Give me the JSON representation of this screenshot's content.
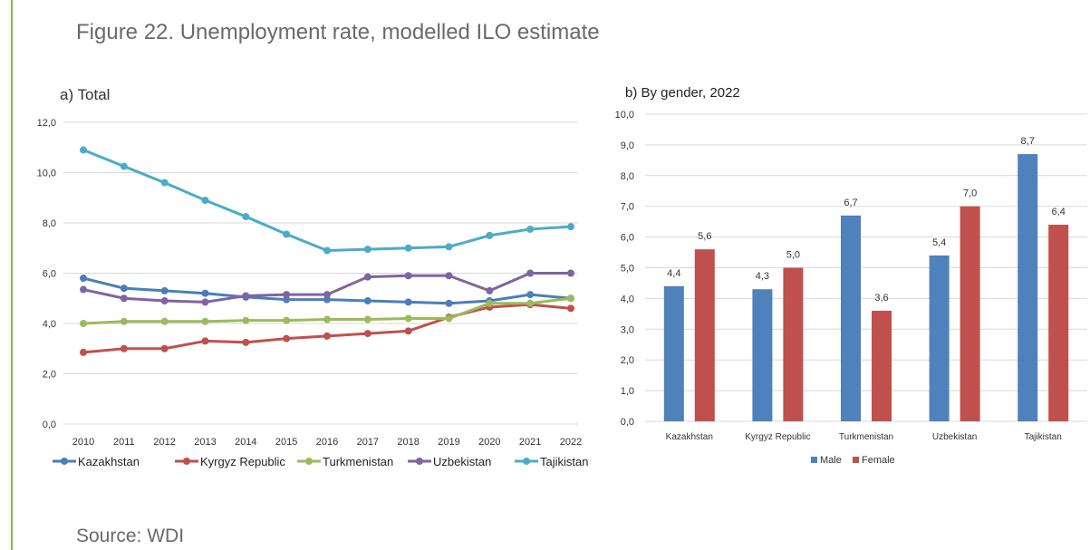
{
  "figure_title": "Figure 22. Unemployment rate, modelled ILO estimate",
  "source": "Source: WDI",
  "chart_data": [
    {
      "type": "line",
      "title": "a) Total",
      "x": [
        "2010",
        "2011",
        "2012",
        "2013",
        "2014",
        "2015",
        "2016",
        "2017",
        "2018",
        "2019",
        "2020",
        "2021",
        "2022"
      ],
      "ylim": [
        0,
        12
      ],
      "yticks": [
        "0,0",
        "2,0",
        "4,0",
        "6,0",
        "8,0",
        "10,0",
        "12,0"
      ],
      "grid": true,
      "legend_position": "bottom",
      "series": [
        {
          "name": "Kazakhstan",
          "color": "#4a7ebb",
          "values": [
            5.8,
            5.4,
            5.3,
            5.2,
            5.05,
            4.95,
            4.95,
            4.9,
            4.85,
            4.8,
            4.9,
            5.15,
            5.0
          ]
        },
        {
          "name": "Kyrgyz Republic",
          "color": "#c0504d",
          "values": [
            2.85,
            3.0,
            3.0,
            3.3,
            3.25,
            3.4,
            3.5,
            3.6,
            3.7,
            4.25,
            4.65,
            4.75,
            4.6
          ]
        },
        {
          "name": "Turkmenistan",
          "color": "#9bbb59",
          "values": [
            4.0,
            4.08,
            4.08,
            4.08,
            4.12,
            4.12,
            4.16,
            4.16,
            4.2,
            4.2,
            4.8,
            4.8,
            5.0
          ]
        },
        {
          "name": "Uzbekistan",
          "color": "#8064a2",
          "values": [
            5.35,
            5.0,
            4.9,
            4.85,
            5.1,
            5.15,
            5.15,
            5.85,
            5.9,
            5.9,
            5.3,
            6.0,
            6.0
          ]
        },
        {
          "name": "Tajikistan",
          "color": "#4bacc6",
          "values": [
            10.9,
            10.25,
            9.6,
            8.9,
            8.25,
            7.55,
            6.9,
            6.95,
            7.0,
            7.05,
            7.5,
            7.75,
            7.85
          ]
        }
      ]
    },
    {
      "type": "bar",
      "title": "b) By gender, 2022",
      "categories": [
        "Kazakhstan",
        "Kyrgyz Republic",
        "Turkmenistan",
        "Uzbekistan",
        "Tajikistan"
      ],
      "ylim": [
        0,
        10
      ],
      "yticks": [
        "0,0",
        "1,0",
        "2,0",
        "3,0",
        "4,0",
        "5,0",
        "6,0",
        "7,0",
        "8,0",
        "9,0",
        "10,0"
      ],
      "grid": true,
      "legend_position": "bottom",
      "series": [
        {
          "name": "Male",
          "color": "#4f81bd",
          "values": [
            4.4,
            4.3,
            6.7,
            5.4,
            8.7
          ],
          "labels": [
            "4,4",
            "4,3",
            "6,7",
            "5,4",
            "8,7"
          ]
        },
        {
          "name": "Female",
          "color": "#c0504d",
          "values": [
            5.6,
            5.0,
            3.6,
            7.0,
            6.4
          ],
          "labels": [
            "5,6",
            "5,0",
            "3,6",
            "7,0",
            "6,4"
          ]
        }
      ]
    }
  ]
}
